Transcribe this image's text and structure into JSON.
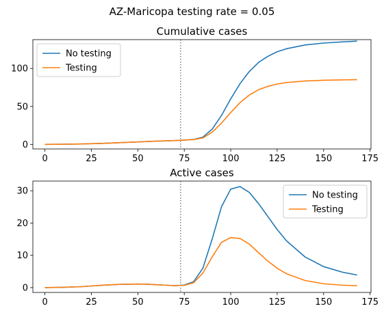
{
  "suptitle": "AZ-Maricopa testing rate = 0.05",
  "colors": {
    "no_testing": "#1f77b4",
    "testing": "#ff7f0e",
    "vline": "#7f7f7f"
  },
  "chart_data": [
    {
      "type": "line",
      "title": "Cumulative cases",
      "xlabel": "",
      "ylabel": "",
      "xlim": [
        -6.5,
        175.5
      ],
      "ylim": [
        -6,
        138
      ],
      "xticks": [
        0,
        25,
        50,
        75,
        100,
        125,
        150,
        175
      ],
      "yticks": [
        0,
        50,
        100
      ],
      "vline_x": 73,
      "legend_loc": "upper left",
      "x": [
        0,
        10,
        20,
        30,
        40,
        50,
        60,
        70,
        73,
        80,
        85,
        90,
        95,
        100,
        105,
        110,
        115,
        120,
        125,
        130,
        140,
        150,
        160,
        168
      ],
      "series": [
        {
          "name": "No testing",
          "values": [
            0,
            0.2,
            0.6,
            1.3,
            2.3,
            3.3,
            4.3,
            5.1,
            5.4,
            6.5,
            9.5,
            20,
            38,
            60,
            80,
            96,
            108,
            116,
            122,
            126,
            131,
            133.5,
            135,
            136
          ]
        },
        {
          "name": "Testing",
          "values": [
            0,
            0.2,
            0.6,
            1.3,
            2.3,
            3.3,
            4.3,
            5.1,
            5.4,
            6.3,
            8.5,
            16,
            28,
            42,
            55,
            65,
            72,
            76.5,
            79.5,
            81.5,
            83.5,
            84.5,
            85,
            85.3
          ]
        }
      ]
    },
    {
      "type": "line",
      "title": "Active cases",
      "xlabel": "",
      "ylabel": "",
      "xlim": [
        -6.5,
        175.5
      ],
      "ylim": [
        -1.5,
        33
      ],
      "xticks": [
        0,
        25,
        50,
        75,
        100,
        125,
        150,
        175
      ],
      "yticks": [
        0,
        10,
        20,
        30
      ],
      "vline_x": 73,
      "legend_loc": "upper right",
      "x": [
        0,
        10,
        20,
        30,
        40,
        50,
        55,
        60,
        65,
        70,
        75,
        80,
        85,
        90,
        95,
        100,
        105,
        110,
        115,
        120,
        125,
        130,
        140,
        150,
        160,
        168
      ],
      "series": [
        {
          "name": "No testing",
          "values": [
            0,
            0.1,
            0.3,
            0.7,
            1.0,
            1.1,
            1.05,
            0.9,
            0.75,
            0.6,
            0.8,
            1.8,
            6,
            15,
            25,
            30.5,
            31.3,
            29.5,
            26,
            22,
            18,
            14.5,
            9.5,
            6.5,
            4.8,
            3.9
          ]
        },
        {
          "name": "Testing",
          "values": [
            0,
            0.1,
            0.3,
            0.7,
            1.0,
            1.1,
            1.05,
            0.9,
            0.75,
            0.6,
            0.7,
            1.5,
            4.5,
            9.5,
            14,
            15.5,
            15.2,
            13.5,
            10.8,
            8.2,
            6,
            4.3,
            2.2,
            1.2,
            0.75,
            0.6
          ]
        }
      ]
    }
  ]
}
